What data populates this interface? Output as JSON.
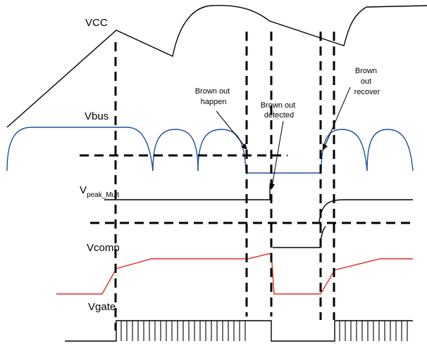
{
  "signals": {
    "vcc": "VCC",
    "vbus": "Vbus",
    "vpeak_main": "V",
    "vpeak_sub": "peak_Mult",
    "vcomp": "Vcomp",
    "vgate": "Vgate"
  },
  "annotations": {
    "brownout_happen": [
      "Brown out",
      "happen"
    ],
    "brownout_detected": [
      "Brown out",
      "detected"
    ],
    "brownout_recover": [
      "Brown",
      "out",
      "recover"
    ]
  },
  "colors": {
    "vbus": "#1f4e9c",
    "vcomp": "#e32c2c",
    "line": "#000000"
  }
}
